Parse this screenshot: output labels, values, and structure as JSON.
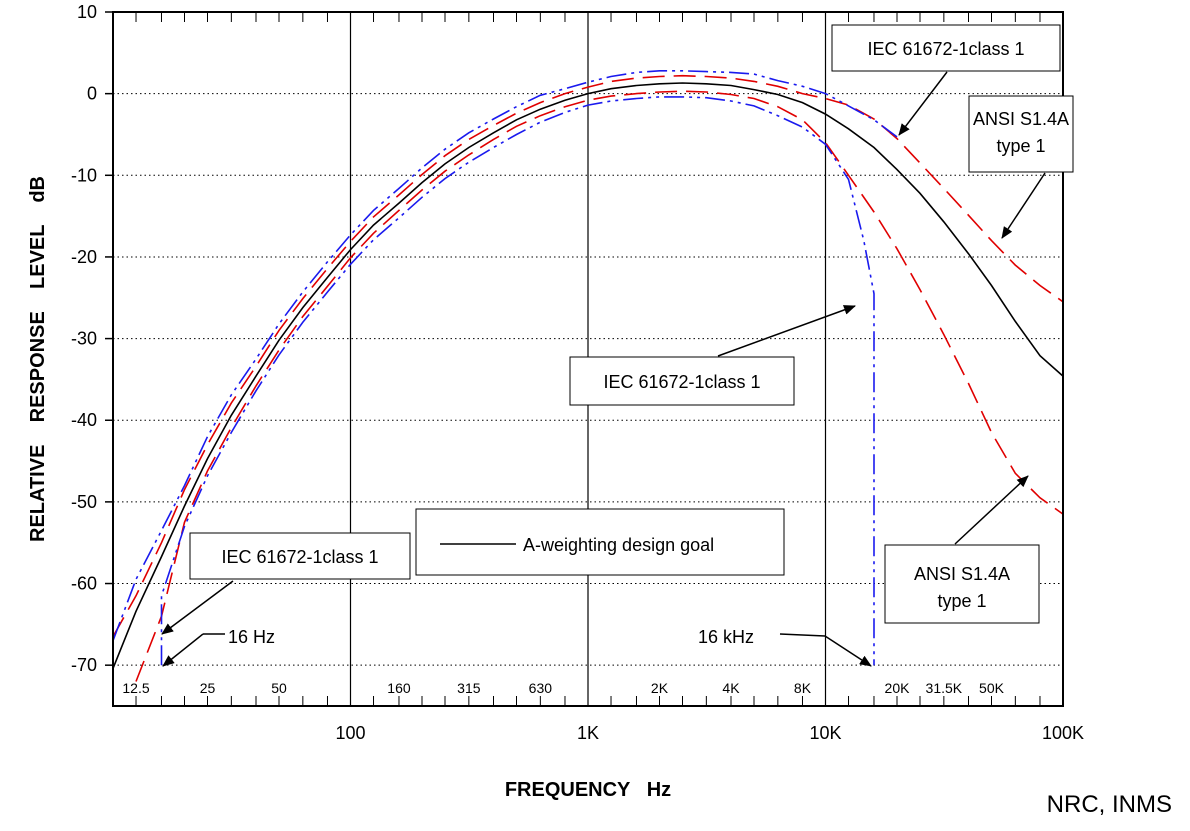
{
  "chart_data": {
    "type": "line",
    "x_scale": "log",
    "xlim": [
      10,
      100000
    ],
    "ylim": [
      -75,
      10
    ],
    "xlabel": "FREQUENCY   Hz",
    "ylabel": "RELATIVE    RESPONSE    LEVEL    dB",
    "x_ticks": [
      {
        "value": 100,
        "label": "100"
      },
      {
        "value": 1000,
        "label": "1K"
      },
      {
        "value": 10000,
        "label": "10K"
      },
      {
        "value": 100000,
        "label": "100K"
      }
    ],
    "y_ticks": [
      {
        "value": 10,
        "label": "10"
      },
      {
        "value": 0,
        "label": "0"
      },
      {
        "value": -10,
        "label": "-10"
      },
      {
        "value": -20,
        "label": "-20"
      },
      {
        "value": -30,
        "label": "-30"
      },
      {
        "value": -40,
        "label": "-40"
      },
      {
        "value": -50,
        "label": "-50"
      },
      {
        "value": -60,
        "label": "-60"
      },
      {
        "value": -70,
        "label": "-70"
      }
    ],
    "band_labels": [
      {
        "value": 12.5,
        "label": "12.5"
      },
      {
        "value": 25,
        "label": "25"
      },
      {
        "value": 50,
        "label": "50"
      },
      {
        "value": 160,
        "label": "160"
      },
      {
        "value": 315,
        "label": "315"
      },
      {
        "value": 630,
        "label": "630"
      },
      {
        "value": 2000,
        "label": "2K"
      },
      {
        "value": 4000,
        "label": "4K"
      },
      {
        "value": 8000,
        "label": "8K"
      },
      {
        "value": 20000,
        "label": "20K"
      },
      {
        "value": 31500,
        "label": "31.5K"
      },
      {
        "value": 50000,
        "label": "50K"
      }
    ],
    "legend_text": "A-weighting design goal",
    "annotations": {
      "iec_top": "IEC 61672-1class 1",
      "ansi_top_1": "ANSI S1.4A",
      "ansi_top_2": "type 1",
      "iec_mid": "IEC 61672-1class 1",
      "iec_left": "IEC 61672-1class 1",
      "ansi_bottom_1": "ANSI S1.4A",
      "ansi_bottom_2": "type 1",
      "hz16": "16 Hz",
      "khz16": "16 kHz"
    },
    "series": [
      {
        "color": "#000000",
        "style": "solid",
        "points": [
          [
            10,
            -70.4
          ],
          [
            12.5,
            -63.4
          ],
          [
            16,
            -56.7
          ],
          [
            20,
            -50.5
          ],
          [
            25,
            -44.7
          ],
          [
            31.5,
            -39.4
          ],
          [
            40,
            -34.6
          ],
          [
            50,
            -30.2
          ],
          [
            63,
            -26.2
          ],
          [
            80,
            -22.5
          ],
          [
            100,
            -19.1
          ],
          [
            125,
            -16.1
          ],
          [
            160,
            -13.4
          ],
          [
            200,
            -10.9
          ],
          [
            250,
            -8.6
          ],
          [
            315,
            -6.6
          ],
          [
            400,
            -4.8
          ],
          [
            500,
            -3.2
          ],
          [
            630,
            -1.9
          ],
          [
            800,
            -0.8
          ],
          [
            1000,
            0
          ],
          [
            1250,
            0.6
          ],
          [
            1600,
            1.0
          ],
          [
            2000,
            1.2
          ],
          [
            2500,
            1.3
          ],
          [
            3150,
            1.2
          ],
          [
            4000,
            1.0
          ],
          [
            5000,
            0.5
          ],
          [
            6300,
            -0.1
          ],
          [
            8000,
            -1.1
          ],
          [
            10000,
            -2.5
          ],
          [
            12500,
            -4.3
          ],
          [
            16000,
            -6.6
          ],
          [
            20000,
            -9.3
          ],
          [
            25000,
            -12.2
          ],
          [
            31500,
            -15.7
          ],
          [
            40000,
            -19.6
          ],
          [
            50000,
            -23.5
          ],
          [
            63000,
            -27.9
          ],
          [
            80000,
            -32.1
          ],
          [
            100000,
            -34.6
          ]
        ]
      },
      {
        "color": "#e00000",
        "style": "dash",
        "points": [
          [
            12.5,
            -72.0
          ],
          [
            16,
            -64.0
          ],
          [
            20,
            -52.5
          ],
          [
            25,
            -46.2
          ],
          [
            31.5,
            -40.9
          ],
          [
            40,
            -35.8
          ],
          [
            50,
            -31.4
          ],
          [
            63,
            -27.3
          ],
          [
            80,
            -23.6
          ],
          [
            100,
            -20.1
          ],
          [
            125,
            -17.1
          ],
          [
            160,
            -14.3
          ],
          [
            200,
            -11.8
          ],
          [
            250,
            -9.5
          ],
          [
            315,
            -7.5
          ],
          [
            400,
            -5.6
          ],
          [
            500,
            -4.0
          ],
          [
            630,
            -2.7
          ],
          [
            800,
            -1.6
          ],
          [
            1000,
            -0.8
          ],
          [
            1250,
            -0.3
          ],
          [
            1600,
            0.0
          ],
          [
            2000,
            0.2
          ],
          [
            2500,
            0.3
          ],
          [
            3150,
            0.2
          ],
          [
            4000,
            -0.1
          ],
          [
            5000,
            -0.6
          ],
          [
            6300,
            -1.6
          ],
          [
            8000,
            -3.2
          ],
          [
            10000,
            -6.0
          ],
          [
            12500,
            -10.0
          ],
          [
            16000,
            -14.5
          ],
          [
            20000,
            -19.0
          ],
          [
            25000,
            -24.0
          ],
          [
            31500,
            -29.5
          ],
          [
            40000,
            -35.5
          ],
          [
            50000,
            -41.5
          ],
          [
            63000,
            -46.5
          ],
          [
            80000,
            -49.5
          ],
          [
            100000,
            -51.5
          ]
        ]
      },
      {
        "color": "#e00000",
        "style": "dash",
        "points": [
          [
            10,
            -66.5
          ],
          [
            12.5,
            -61.5
          ],
          [
            16,
            -55.0
          ],
          [
            20,
            -48.5
          ],
          [
            25,
            -43.0
          ],
          [
            31.5,
            -37.9
          ],
          [
            40,
            -33.4
          ],
          [
            50,
            -29.0
          ],
          [
            63,
            -25.1
          ],
          [
            80,
            -21.4
          ],
          [
            100,
            -18.1
          ],
          [
            125,
            -15.1
          ],
          [
            160,
            -12.4
          ],
          [
            200,
            -9.9
          ],
          [
            250,
            -7.6
          ],
          [
            315,
            -5.6
          ],
          [
            400,
            -3.9
          ],
          [
            500,
            -2.4
          ],
          [
            630,
            -1.1
          ],
          [
            800,
            0.0
          ],
          [
            1000,
            0.8
          ],
          [
            1250,
            1.5
          ],
          [
            1600,
            1.9
          ],
          [
            2000,
            2.1
          ],
          [
            2500,
            2.2
          ],
          [
            3150,
            2.1
          ],
          [
            4000,
            1.9
          ],
          [
            5000,
            1.5
          ],
          [
            6300,
            0.9
          ],
          [
            8000,
            0.0
          ],
          [
            10000,
            -0.6
          ],
          [
            12500,
            -1.4
          ],
          [
            16000,
            -3.1
          ],
          [
            20000,
            -5.5
          ],
          [
            25000,
            -8.5
          ],
          [
            31500,
            -11.6
          ],
          [
            40000,
            -14.9
          ],
          [
            50000,
            -18.0
          ],
          [
            63000,
            -21.0
          ],
          [
            80000,
            -23.5
          ],
          [
            100000,
            -25.5
          ]
        ]
      },
      {
        "color": "#1a1aee",
        "style": "dashdot",
        "points": [
          [
            16,
            -70.0
          ],
          [
            16,
            -61.5
          ],
          [
            20,
            -53.0
          ],
          [
            25,
            -46.8
          ],
          [
            31.5,
            -41.5
          ],
          [
            40,
            -36.4
          ],
          [
            50,
            -32.0
          ],
          [
            63,
            -28.0
          ],
          [
            80,
            -24.3
          ],
          [
            100,
            -20.9
          ],
          [
            125,
            -17.9
          ],
          [
            160,
            -15.2
          ],
          [
            200,
            -12.7
          ],
          [
            250,
            -10.4
          ],
          [
            315,
            -8.4
          ],
          [
            400,
            -6.6
          ],
          [
            500,
            -5.0
          ],
          [
            630,
            -3.5
          ],
          [
            800,
            -2.3
          ],
          [
            1000,
            -1.4
          ],
          [
            1250,
            -0.9
          ],
          [
            1600,
            -0.6
          ],
          [
            2000,
            -0.4
          ],
          [
            2500,
            -0.4
          ],
          [
            3150,
            -0.5
          ],
          [
            4000,
            -0.9
          ],
          [
            5000,
            -1.5
          ],
          [
            6300,
            -2.7
          ],
          [
            8000,
            -4.1
          ],
          [
            10000,
            -6.2
          ],
          [
            12500,
            -10.5
          ],
          [
            14500,
            -18.0
          ],
          [
            16000,
            -24.5
          ],
          [
            16000,
            -70.0
          ]
        ]
      },
      {
        "color": "#1a1aee",
        "style": "dashdot",
        "points": [
          [
            10,
            -67.0
          ],
          [
            12.5,
            -59.5
          ],
          [
            16,
            -53.5
          ],
          [
            20,
            -48.0
          ],
          [
            25,
            -42.0
          ],
          [
            31.5,
            -36.9
          ],
          [
            40,
            -32.5
          ],
          [
            50,
            -28.2
          ],
          [
            63,
            -24.3
          ],
          [
            80,
            -20.6
          ],
          [
            100,
            -17.3
          ],
          [
            125,
            -14.3
          ],
          [
            160,
            -11.6
          ],
          [
            200,
            -9.1
          ],
          [
            250,
            -6.8
          ],
          [
            315,
            -4.8
          ],
          [
            400,
            -3.1
          ],
          [
            500,
            -1.6
          ],
          [
            630,
            -0.2
          ],
          [
            800,
            0.6
          ],
          [
            1000,
            1.4
          ],
          [
            1250,
            2.1
          ],
          [
            1600,
            2.6
          ],
          [
            2000,
            2.8
          ],
          [
            2500,
            2.8
          ],
          [
            3150,
            2.7
          ],
          [
            4000,
            2.6
          ],
          [
            5000,
            2.4
          ],
          [
            6300,
            1.6
          ],
          [
            8000,
            0.9
          ],
          [
            10000,
            0.0
          ],
          [
            12500,
            -1.5
          ],
          [
            16000,
            -3.2
          ],
          [
            20000,
            -5.3
          ]
        ]
      }
    ]
  }
}
